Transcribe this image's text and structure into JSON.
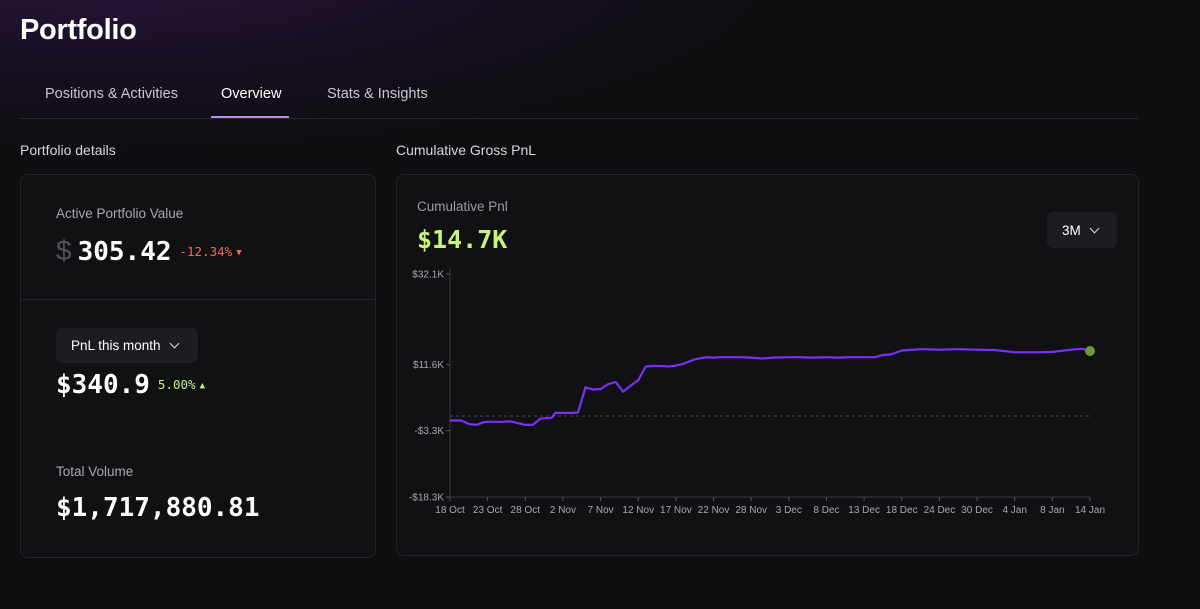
{
  "header": {
    "title": "Portfolio"
  },
  "tabs": [
    {
      "label": "Positions & Activities",
      "active": false
    },
    {
      "label": "Overview",
      "active": true
    },
    {
      "label": "Stats & Insights",
      "active": false
    }
  ],
  "portfolio": {
    "section_label": "Portfolio details",
    "active_value_label": "Active Portfolio Value",
    "currency_symbol": "$",
    "active_value": "305.42",
    "active_change": "-12.34%",
    "pnl_dropdown_label": "PnL this month",
    "pnl_month_value": "$340.9",
    "pnl_month_change": "5.00%",
    "total_volume_label": "Total Volume",
    "total_volume": "$1,717,880.81"
  },
  "chart_section": {
    "section_label": "Cumulative Gross PnL",
    "metric_label": "Cumulative Pnl",
    "metric_value": "$14.7K",
    "range_label": "3M"
  },
  "colors": {
    "accent": "#b58cf0",
    "line": "#7b2ff7",
    "positive": "#c5f27a",
    "negative": "#ef6a5a",
    "endpoint": "#6a9a3a"
  },
  "chart_data": {
    "type": "line",
    "title": "",
    "xlabel": "",
    "ylabel": "",
    "x_ticks": [
      "18 Oct",
      "23 Oct",
      "28 Oct",
      "2 Nov",
      "7 Nov",
      "12 Nov",
      "17 Nov",
      "22 Nov",
      "28 Nov",
      "3 Dec",
      "8 Dec",
      "13 Dec",
      "18 Dec",
      "24 Dec",
      "30 Dec",
      "4 Jan",
      "8 Jan",
      "14 Jan"
    ],
    "y_ticks": [
      {
        "value": 32.1,
        "label": "$32.1K"
      },
      {
        "value": 11.6,
        "label": "$11.6K"
      },
      {
        "value": -3.3,
        "label": "-$3.3K"
      },
      {
        "value": -18.3,
        "label": "-$18.3K"
      }
    ],
    "ylim": [
      -18.3,
      32.1
    ],
    "baseline": 0,
    "series": [
      {
        "x": [
          0,
          0.3,
          0.5,
          0.7,
          0.9,
          1,
          1.2,
          1.4,
          1.6,
          2,
          2.2,
          2.4,
          2.7,
          2.8,
          3,
          3.2,
          3.4,
          3.6,
          3.8,
          4,
          4.2,
          4.4,
          4.6,
          4.8,
          5,
          5.2,
          5.4,
          5.6,
          5.8,
          6,
          6.2,
          6.5,
          6.8,
          7,
          7.2,
          7.4,
          7.7,
          8,
          8.3,
          8.6,
          9,
          9.3,
          9.6,
          10,
          10.3,
          10.6,
          11,
          11.3,
          11.5,
          11.7,
          12,
          12.5,
          13,
          13.5,
          14,
          14.5,
          15,
          15.3,
          15.6,
          16,
          16.5,
          16.8,
          17
        ],
        "y": [
          -1,
          -1,
          -1.8,
          -2,
          -1.4,
          -1.3,
          -1.3,
          -1.3,
          -1.2,
          -2,
          -2,
          -0.6,
          -0.4,
          0.7,
          0.7,
          0.7,
          0.8,
          6.5,
          6,
          6.1,
          7.2,
          7.7,
          5.5,
          6.9,
          8.1,
          11.2,
          11.3,
          11.3,
          11.2,
          11.4,
          11.8,
          12.8,
          13.3,
          13.2,
          13.3,
          13.3,
          13.3,
          13.2,
          13,
          13.2,
          13.3,
          13.3,
          13.2,
          13.3,
          13.2,
          13.3,
          13.3,
          13.3,
          13.8,
          13.9,
          14.8,
          15.1,
          15,
          15.1,
          15,
          14.9,
          14.4,
          14.4,
          14.4,
          14.5,
          15,
          15.2,
          14.7
        ]
      }
    ]
  }
}
